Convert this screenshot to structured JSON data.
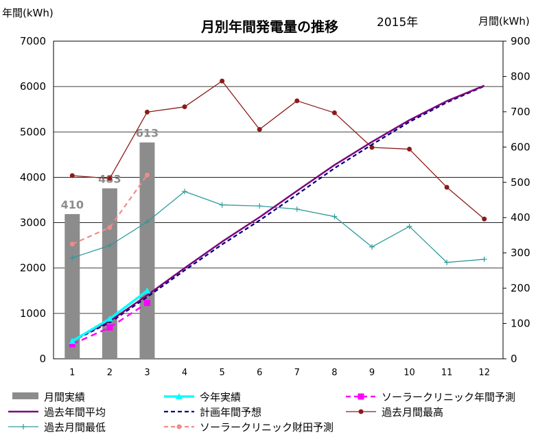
{
  "chart_data": {
    "type": "bar+line",
    "title": "月別年間発電量の推移",
    "subtitle": "2015年",
    "y_left_label": "年間(kWh)",
    "y_right_label": "月間(kWh)",
    "x": [
      1,
      2,
      3,
      4,
      5,
      6,
      7,
      8,
      9,
      10,
      11,
      12
    ],
    "x_tick_labels": [
      "1",
      "2",
      "3",
      "4",
      "5",
      "6",
      "7",
      "8",
      "9",
      "10",
      "11",
      "12"
    ],
    "ylim_left": [
      0,
      7000
    ],
    "ylim_right": [
      0,
      900
    ],
    "y_left_ticks": [
      "0",
      "1000",
      "2000",
      "3000",
      "4000",
      "5000",
      "6000",
      "7000"
    ],
    "y_right_ticks": [
      "0",
      "100",
      "200",
      "300",
      "400",
      "500",
      "600",
      "700",
      "800",
      "900"
    ],
    "grid": true,
    "legend_position": "bottom",
    "bars": {
      "name": "月間実績",
      "axis": "right",
      "color": "#8c8c8c",
      "x": [
        1,
        2,
        3
      ],
      "values": [
        410,
        483,
        613
      ],
      "labels": [
        "410",
        "483",
        "613"
      ]
    },
    "series": [
      {
        "name": "今年実績",
        "axis": "left",
        "color": "#00ffff",
        "style": "solid",
        "marker": "triangle",
        "x": [
          1,
          2,
          3
        ],
        "values": [
          390,
          880,
          1500
        ]
      },
      {
        "name": "ソーラークリニック年間予測",
        "axis": "left",
        "color": "#ff00ff",
        "style": "dashed",
        "marker": "square",
        "x": [
          1,
          2,
          3
        ],
        "values": [
          320,
          690,
          1230
        ]
      },
      {
        "name": "過去年間平均",
        "axis": "left",
        "color": "#7b007b",
        "style": "solid",
        "marker": "none",
        "x": [
          1,
          2,
          3,
          4,
          5,
          6,
          7,
          8,
          9,
          10,
          11,
          12
        ],
        "values": [
          400,
          830,
          1400,
          2000,
          2580,
          3120,
          3700,
          4270,
          4780,
          5260,
          5680,
          6020
        ]
      },
      {
        "name": "計画年間予想",
        "axis": "left",
        "color": "#000080",
        "style": "dashed",
        "marker": "none",
        "x": [
          1,
          2,
          3,
          4,
          5,
          6,
          7,
          8,
          9,
          10,
          11,
          12
        ],
        "values": [
          390,
          800,
          1360,
          1950,
          2520,
          3050,
          3620,
          4200,
          4720,
          5220,
          5650,
          6010
        ]
      },
      {
        "name": "過去月間最高",
        "axis": "right",
        "color": "#8b1a1a",
        "style": "solid",
        "marker": "circle",
        "x": [
          1,
          2,
          3,
          4,
          5,
          6,
          7,
          8,
          9,
          10,
          11,
          12
        ],
        "values": [
          519,
          511,
          699,
          714,
          787,
          650,
          731,
          697,
          599,
          594,
          486,
          396
        ]
      },
      {
        "name": "過去月間最低",
        "axis": "right",
        "color": "#2e9a9a",
        "style": "solid",
        "marker": "plus",
        "x": [
          1,
          2,
          3,
          4,
          5,
          6,
          7,
          8,
          9,
          10,
          11,
          12
        ],
        "values": [
          286,
          321,
          388,
          474,
          436,
          433,
          424,
          403,
          317,
          375,
          273,
          282
        ]
      },
      {
        "name": "ソーラークリニック財田予測",
        "axis": "right",
        "color": "#f28a8a",
        "style": "dashed",
        "marker": "circle",
        "x": [
          1,
          2,
          3
        ],
        "values": [
          325,
          372,
          521
        ]
      }
    ]
  }
}
